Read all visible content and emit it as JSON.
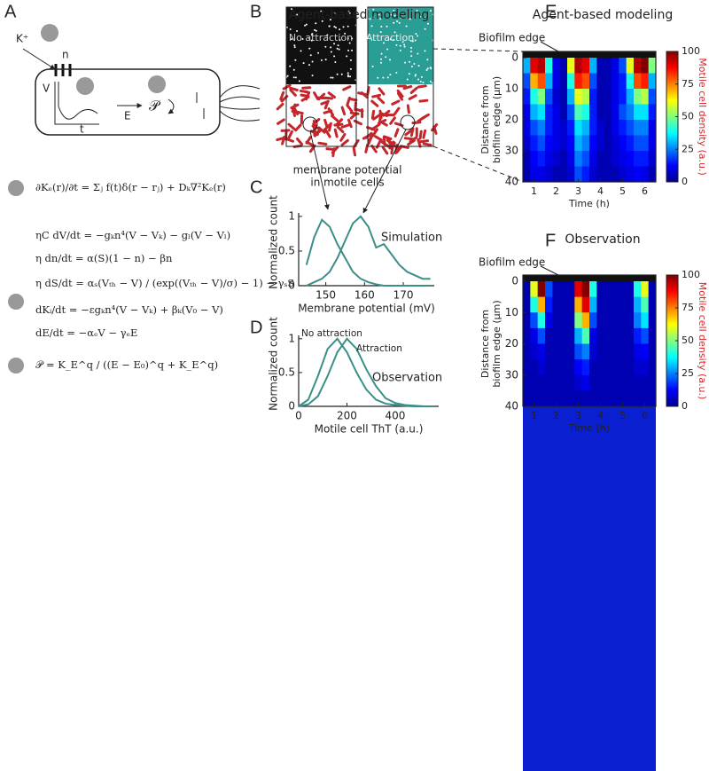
{
  "panel_labels": [
    "A",
    "B",
    "C",
    "D",
    "E",
    "F"
  ],
  "diagram": {
    "ion": "K⁺",
    "gate": "n",
    "voltage": "V",
    "time": "t",
    "field": "E",
    "prob": "𝒫"
  },
  "equations": [
    "∂Kₑ(r)/∂t = Σⱼ f(t)δ(r − rⱼ) + Dₖ∇²Kₑ(r)",
    "ηC dV/dt = −gₖn⁴(V − Vₖ) − gₗ(V − Vₗ)",
    "η dn/dt = α(S)(1 − n) − βn",
    "η dS/dt = αₛ(Vₜₕ − V) / (exp((Vₜₕ − V)/σ) − 1) − γₛS",
    "dKᵢ/dt = −εgₖn⁴(V − Vₖ) + βₖ(V₀ − V)",
    "dE/dt = −αₑV − γₑE",
    "𝒫 = K_E^q / ((E − E₀)^q + K_E^q)"
  ],
  "panel_b": {
    "title": "Agent-based modeling",
    "left_label": "No attraction",
    "right_label": "Attraction"
  },
  "chart_data": [
    {
      "type": "line",
      "title": [
        "membrane potential",
        "in motile cells"
      ],
      "xlabel": "Membrane potential (mV)",
      "ylabel": "Normalized count",
      "annotations": [
        "Simulation"
      ],
      "color": "#3a8f88",
      "x": [
        145,
        147,
        149,
        151,
        153,
        155,
        157,
        159,
        161,
        163,
        165,
        167,
        169,
        171,
        173,
        175,
        177
      ],
      "series": [
        {
          "values": [
            0.3,
            0.7,
            0.95,
            0.85,
            0.6,
            0.4,
            0.2,
            0.1,
            0.05,
            0.02,
            0,
            0,
            0,
            0,
            0,
            0,
            0
          ]
        },
        {
          "values": [
            0,
            0.05,
            0.1,
            0.2,
            0.4,
            0.65,
            0.9,
            1,
            0.85,
            0.55,
            0.6,
            0.45,
            0.3,
            0.2,
            0.15,
            0.1,
            0.1
          ]
        }
      ],
      "xlim": [
        143,
        178
      ],
      "xticks": [
        150,
        160,
        170
      ],
      "ylim": [
        0,
        1.05
      ],
      "yticks": [
        0,
        0.5,
        1
      ]
    },
    {
      "type": "line",
      "xlabel": "Motile cell ThT (a.u.)",
      "ylabel": "Normalized count",
      "annotations": [
        "Observation"
      ],
      "color": "#3a8f88",
      "x": [
        0,
        40,
        80,
        120,
        160,
        200,
        240,
        280,
        320,
        360,
        400,
        440,
        480,
        520,
        560
      ],
      "series": [
        {
          "name": "No attraction",
          "values": [
            0,
            0.1,
            0.45,
            0.85,
            1,
            0.8,
            0.5,
            0.25,
            0.1,
            0.04,
            0.02,
            0.01,
            0,
            0,
            0
          ]
        },
        {
          "name": "Attraction",
          "values": [
            0,
            0.03,
            0.15,
            0.45,
            0.8,
            1,
            0.85,
            0.55,
            0.3,
            0.12,
            0.05,
            0.02,
            0.01,
            0,
            0
          ]
        }
      ],
      "xlim": [
        0,
        580
      ],
      "xticks": [
        0,
        200,
        400
      ],
      "ylim": [
        0,
        1.05
      ],
      "yticks": [
        0,
        0.5,
        1
      ]
    },
    {
      "type": "heatmap",
      "title": "Agent-based modeling",
      "xlabel": "Time (h)",
      "ylabel": [
        "Distance from",
        "biofilm edge (µm)"
      ],
      "annotations": [
        "Biofilm edge"
      ],
      "colorbar_label": "Motile cell density (a.u.)",
      "colormap": "jet",
      "xlim": [
        0.5,
        6.5
      ],
      "xticks": [
        1,
        2,
        3,
        4,
        5,
        6
      ],
      "ylim": [
        0,
        40
      ],
      "yticks": [
        0,
        10,
        20,
        30,
        40
      ],
      "zlim": [
        0,
        100
      ],
      "zticks": [
        0,
        25,
        50,
        75,
        100
      ],
      "z": [
        [
          30,
          90,
          95,
          40,
          10,
          5,
          60,
          95,
          90,
          30,
          5,
          5,
          10,
          20,
          60,
          95,
          100,
          50
        ],
        [
          20,
          70,
          80,
          30,
          10,
          5,
          40,
          85,
          80,
          20,
          5,
          5,
          10,
          15,
          40,
          80,
          85,
          30
        ],
        [
          15,
          40,
          50,
          20,
          8,
          5,
          30,
          60,
          55,
          15,
          5,
          5,
          10,
          15,
          30,
          50,
          55,
          20
        ],
        [
          10,
          30,
          35,
          15,
          10,
          5,
          20,
          45,
          40,
          15,
          5,
          5,
          10,
          20,
          25,
          35,
          35,
          15
        ],
        [
          10,
          20,
          25,
          15,
          10,
          8,
          15,
          35,
          30,
          15,
          8,
          5,
          10,
          15,
          20,
          25,
          25,
          10
        ],
        [
          8,
          15,
          20,
          12,
          10,
          8,
          12,
          30,
          25,
          12,
          8,
          5,
          8,
          12,
          15,
          20,
          20,
          10
        ],
        [
          5,
          12,
          15,
          10,
          8,
          5,
          10,
          25,
          20,
          10,
          5,
          5,
          8,
          10,
          12,
          15,
          15,
          8
        ],
        [
          5,
          10,
          10,
          8,
          5,
          5,
          8,
          20,
          15,
          8,
          5,
          5,
          5,
          8,
          10,
          12,
          10,
          5
        ]
      ]
    },
    {
      "type": "heatmap",
      "title": "Observation",
      "xlabel": "Time (h)",
      "ylabel": [
        "Distance from",
        "biofilm edge (µm)"
      ],
      "annotations": [
        "Biofilm edge"
      ],
      "colorbar_label": "Motile cell density (a.u.)",
      "colormap": "jet",
      "xlim": [
        0.5,
        6.5
      ],
      "xticks": [
        1,
        2,
        3,
        4,
        5,
        6
      ],
      "ylim": [
        0,
        40
      ],
      "yticks": [
        0,
        10,
        20,
        30,
        40
      ],
      "zlim": [
        0,
        100
      ],
      "zticks": [
        0,
        25,
        50,
        75,
        100
      ],
      "z": [
        [
          5,
          60,
          100,
          20,
          5,
          5,
          5,
          90,
          100,
          40,
          5,
          5,
          5,
          5,
          5,
          40,
          60,
          5
        ],
        [
          5,
          40,
          70,
          15,
          5,
          5,
          5,
          70,
          90,
          30,
          5,
          5,
          5,
          5,
          5,
          30,
          45,
          5
        ],
        [
          5,
          20,
          40,
          10,
          5,
          5,
          5,
          50,
          70,
          20,
          5,
          5,
          5,
          5,
          5,
          25,
          35,
          5
        ],
        [
          5,
          10,
          20,
          5,
          5,
          5,
          5,
          30,
          45,
          10,
          5,
          5,
          5,
          5,
          5,
          15,
          20,
          5
        ],
        [
          5,
          8,
          10,
          5,
          5,
          5,
          5,
          20,
          25,
          8,
          5,
          5,
          5,
          5,
          5,
          10,
          12,
          5
        ],
        [
          5,
          5,
          8,
          5,
          5,
          5,
          5,
          12,
          15,
          5,
          5,
          5,
          5,
          5,
          5,
          8,
          8,
          5
        ],
        [
          5,
          5,
          5,
          5,
          5,
          5,
          5,
          8,
          10,
          5,
          5,
          5,
          5,
          5,
          5,
          5,
          5,
          5
        ],
        [
          5,
          5,
          5,
          5,
          5,
          5,
          5,
          5,
          5,
          5,
          5,
          5,
          5,
          5,
          5,
          5,
          5,
          5
        ]
      ]
    }
  ]
}
